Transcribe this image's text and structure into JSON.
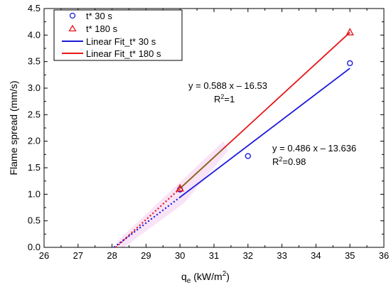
{
  "chart_data": {
    "type": "scatter",
    "xlabel": "q",
    "xlabel_sub": "e",
    "xlabel_unit_prefix": " (kW/m",
    "xlabel_unit_sup": "2",
    "xlabel_unit_suffix": ")",
    "ylabel": "Flame spread (mm/s)",
    "xlim": [
      26,
      36
    ],
    "ylim": [
      0.0,
      4.5
    ],
    "x_ticks": [
      26,
      27,
      28,
      29,
      30,
      31,
      32,
      33,
      34,
      35,
      36
    ],
    "y_ticks": [
      "0.0",
      "0.5",
      "1.0",
      "1.5",
      "2.0",
      "2.5",
      "3.0",
      "3.5",
      "4.0",
      "4.5"
    ],
    "grid": false,
    "legend_position": "top-left",
    "series": [
      {
        "name": "t*  30 s",
        "marker": "circle",
        "color": "#1a1adc",
        "x": [
          30,
          32,
          35
        ],
        "y": [
          1.09,
          1.72,
          3.47
        ]
      },
      {
        "name": "t*  180 s",
        "marker": "triangle",
        "color": "#e8161a",
        "x": [
          30,
          35
        ],
        "y": [
          1.11,
          4.05
        ]
      }
    ],
    "fits": [
      {
        "name": "Linear Fit_t* 30 s",
        "color": "#1a1adc",
        "slope": 0.486,
        "intercept": -13.636,
        "x_range": [
          30,
          35
        ],
        "extrapolate_to": 28.06,
        "equation": "y = 0.486 x – 13.636",
        "r2_prefix": "R",
        "r2_sup": "2",
        "r2_value": "=0.98"
      },
      {
        "name": "Linear Fit_t* 180 s",
        "color": "#e8161a",
        "slope": 0.588,
        "intercept": -16.53,
        "x_range": [
          30,
          35
        ],
        "extrapolate_to": 28.11,
        "equation": "y = 0.588 x – 16.53",
        "r2_prefix": "R",
        "r2_sup": "2",
        "r2_value": "=1"
      }
    ],
    "fit_overlap_color": "#8a6a1e",
    "highlight_color": "#f4cdf0"
  }
}
